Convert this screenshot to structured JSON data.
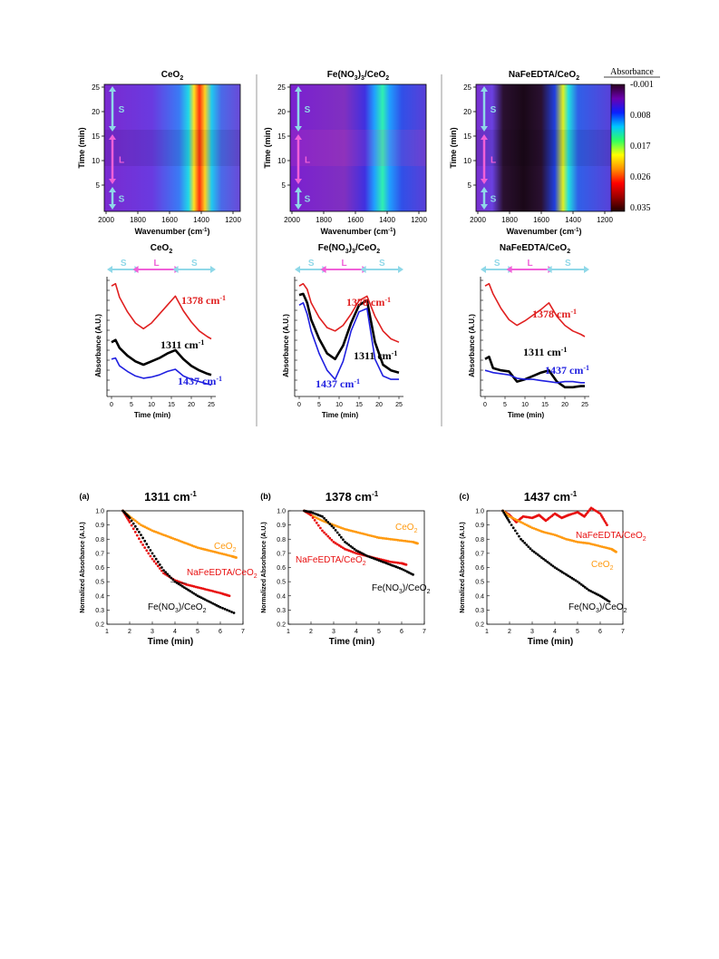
{
  "heatmaps": [
    {
      "title": "CeO",
      "title_sub": "2",
      "title_post": "",
      "variant": "ceo2"
    },
    {
      "title": "Fe(NO",
      "title_sub": "3",
      "title_post": ")3/CeO2",
      "variant": "fe"
    },
    {
      "title": "NaFeEDTA/CeO",
      "title_sub": "2",
      "title_post": "",
      "variant": "na"
    }
  ],
  "heatmap_axes": {
    "xlabel": "Wavenumber (cm",
    "xlabel_sup": "-1",
    "xlabel_end": ")",
    "ylabel": "Time (min)",
    "xticks": [
      "2000",
      "1800",
      "1600",
      "1400",
      "1200"
    ],
    "yticks": [
      "25",
      "20",
      "15",
      "10",
      "5"
    ],
    "phases": [
      "S",
      "L",
      "S"
    ]
  },
  "colorbar": {
    "title": "Absorbance",
    "ticks": [
      "-0.001",
      "0.008",
      "0.017",
      "0.026",
      "0.035"
    ],
    "colors": [
      "#2b0020",
      "#6a00b0",
      "#0a20ff",
      "#00c8ff",
      "#30ff60",
      "#ffff00",
      "#ff9000",
      "#ff0000",
      "#9a0000",
      "#200000"
    ]
  },
  "chart_data": [
    {
      "type": "line",
      "title": "CeO2",
      "xlabel": "Time (min)",
      "ylabel": "Absorbance (A.U.)",
      "xticks": [
        "0",
        "5",
        "10",
        "15",
        "20",
        "25"
      ],
      "phases": [
        "S",
        "L",
        "S"
      ],
      "series": [
        {
          "name": "1378 cm-1",
          "color": "#e02020",
          "x": [
            0,
            1,
            2,
            4,
            6,
            8,
            10,
            12,
            14,
            16,
            18,
            20,
            22,
            24,
            25
          ],
          "y": [
            0.95,
            0.97,
            0.85,
            0.72,
            0.62,
            0.57,
            0.62,
            0.7,
            0.78,
            0.86,
            0.73,
            0.63,
            0.55,
            0.5,
            0.48
          ]
        },
        {
          "name": "1311 cm-1",
          "color": "#000000",
          "x": [
            0,
            1,
            2,
            4,
            6,
            8,
            10,
            12,
            14,
            16,
            18,
            20,
            22,
            24,
            25
          ],
          "y": [
            0.45,
            0.47,
            0.4,
            0.33,
            0.28,
            0.25,
            0.28,
            0.31,
            0.35,
            0.38,
            0.3,
            0.24,
            0.2,
            0.17,
            0.16
          ]
        },
        {
          "name": "1437 cm-1",
          "color": "#2020e0",
          "x": [
            0,
            1,
            2,
            4,
            6,
            8,
            10,
            12,
            14,
            16,
            18,
            20,
            22,
            24,
            25
          ],
          "y": [
            0.3,
            0.31,
            0.24,
            0.19,
            0.15,
            0.13,
            0.14,
            0.16,
            0.19,
            0.21,
            0.15,
            0.12,
            0.1,
            0.08,
            0.07
          ]
        }
      ],
      "labels": [
        "1378 cm",
        "1311 cm",
        "1437 cm"
      ]
    },
    {
      "type": "line",
      "title": "Fe(NO3)3/CeO2",
      "xlabel": "Time (min)",
      "ylabel": "Absorbance (A.U.)",
      "xticks": [
        "0",
        "5",
        "10",
        "15",
        "20",
        "25"
      ],
      "phases": [
        "S",
        "L",
        "S"
      ],
      "series": [
        {
          "name": "1378 cm-1",
          "color": "#e02020",
          "x": [
            0,
            1,
            2,
            3,
            5,
            7,
            9,
            11,
            13,
            15,
            17,
            19,
            21,
            23,
            25
          ],
          "y": [
            0.95,
            0.97,
            0.92,
            0.8,
            0.67,
            0.58,
            0.55,
            0.6,
            0.7,
            0.82,
            0.86,
            0.68,
            0.55,
            0.48,
            0.45
          ]
        },
        {
          "name": "1311 cm-1",
          "color": "#000000",
          "x": [
            0,
            1,
            2,
            3,
            5,
            7,
            9,
            11,
            13,
            15,
            17,
            19,
            21,
            23,
            25
          ],
          "y": [
            0.87,
            0.88,
            0.8,
            0.65,
            0.48,
            0.35,
            0.3,
            0.42,
            0.62,
            0.78,
            0.82,
            0.45,
            0.25,
            0.2,
            0.18
          ]
        },
        {
          "name": "1437 cm-1",
          "color": "#2020e0",
          "x": [
            0,
            1,
            2,
            3,
            5,
            7,
            9,
            11,
            13,
            15,
            17,
            19,
            21,
            23,
            25
          ],
          "y": [
            0.78,
            0.8,
            0.7,
            0.55,
            0.35,
            0.2,
            0.12,
            0.28,
            0.55,
            0.72,
            0.75,
            0.3,
            0.15,
            0.12,
            0.12
          ]
        }
      ],
      "labels": [
        "1378 cm",
        "1311 cm",
        "1437 cm"
      ]
    },
    {
      "type": "line",
      "title": "NaFeEDTA/CeO2",
      "xlabel": "Time (min)",
      "ylabel": "Absorbance (A.U.)",
      "xticks": [
        "0",
        "5",
        "10",
        "15",
        "20",
        "25"
      ],
      "phases": [
        "S",
        "L",
        "S"
      ],
      "series": [
        {
          "name": "1378 cm-1",
          "color": "#e02020",
          "x": [
            0,
            1,
            2,
            4,
            6,
            8,
            10,
            12,
            14,
            16,
            18,
            20,
            22,
            24,
            25
          ],
          "y": [
            0.95,
            0.97,
            0.88,
            0.75,
            0.65,
            0.6,
            0.64,
            0.69,
            0.74,
            0.8,
            0.68,
            0.6,
            0.55,
            0.52,
            0.5
          ]
        },
        {
          "name": "1311 cm-1",
          "color": "#000000",
          "x": [
            0,
            1,
            2,
            4,
            6,
            8,
            10,
            12,
            14,
            16,
            18,
            20,
            22,
            24,
            25
          ],
          "y": [
            0.3,
            0.32,
            0.22,
            0.2,
            0.19,
            0.1,
            0.12,
            0.15,
            0.18,
            0.2,
            0.1,
            0.05,
            0.05,
            0.06,
            0.06
          ]
        },
        {
          "name": "1437 cm-1",
          "color": "#2020e0",
          "x": [
            0,
            1,
            2,
            4,
            6,
            8,
            10,
            12,
            14,
            16,
            18,
            20,
            22,
            24,
            25
          ],
          "y": [
            0.2,
            0.19,
            0.18,
            0.17,
            0.16,
            0.13,
            0.12,
            0.12,
            0.11,
            0.1,
            0.09,
            0.1,
            0.1,
            0.09,
            0.09
          ]
        }
      ],
      "labels": [
        "1378 cm",
        "1311 cm",
        "1437 cm"
      ]
    },
    {
      "type": "scatter",
      "panel": "(a)",
      "title": "1311 cm",
      "xlabel": "Time (min)",
      "ylabel": "Normalized Absorbance (A.U.)",
      "xlim": [
        1,
        7
      ],
      "ylim": [
        0.2,
        1.0
      ],
      "xticks": [
        "1",
        "2",
        "3",
        "4",
        "5",
        "6",
        "7"
      ],
      "yticks": [
        "1.0",
        "0.9",
        "0.8",
        "0.7",
        "0.6",
        "0.5",
        "0.4",
        "0.3",
        "0.2"
      ],
      "series": [
        {
          "name": "CeO2",
          "color": "#ff9a10",
          "x": [
            1.7,
            2.0,
            2.5,
            3.0,
            3.5,
            4.0,
            4.5,
            5.0,
            5.5,
            6.0,
            6.5,
            6.7
          ],
          "y": [
            1.0,
            0.96,
            0.9,
            0.86,
            0.83,
            0.8,
            0.77,
            0.74,
            0.72,
            0.7,
            0.68,
            0.67
          ]
        },
        {
          "name": "NaFeEDTA/CeO2",
          "color": "#e81010",
          "x": [
            1.7,
            2.0,
            2.5,
            3.0,
            3.5,
            4.0,
            4.5,
            5.0,
            5.5,
            6.0,
            6.4
          ],
          "y": [
            1.0,
            0.92,
            0.78,
            0.66,
            0.56,
            0.51,
            0.48,
            0.46,
            0.44,
            0.42,
            0.4
          ]
        },
        {
          "name": "Fe(NO3)3/CeO2",
          "color": "#000000",
          "x": [
            1.7,
            2.0,
            2.5,
            3.0,
            3.5,
            4.0,
            4.5,
            5.0,
            5.5,
            6.0,
            6.6
          ],
          "y": [
            1.0,
            0.95,
            0.83,
            0.7,
            0.58,
            0.5,
            0.45,
            0.4,
            0.36,
            0.32,
            0.28
          ]
        }
      ],
      "labels": [
        "CeO",
        "NaFeEDTA/CeO",
        "Fe(NO",
        ")/CeO"
      ]
    },
    {
      "type": "scatter",
      "panel": "(b)",
      "title": "1378 cm",
      "xlabel": "Time (min)",
      "ylabel": "Normalized Absorbance (A.U.)",
      "xlim": [
        1,
        7
      ],
      "ylim": [
        0.2,
        1.0
      ],
      "xticks": [
        "1",
        "2",
        "3",
        "4",
        "5",
        "6",
        "7"
      ],
      "yticks": [
        "1.0",
        "0.9",
        "0.8",
        "0.7",
        "0.6",
        "0.5",
        "0.4",
        "0.3",
        "0.2"
      ],
      "series": [
        {
          "name": "CeO2",
          "color": "#ff9a10",
          "x": [
            1.7,
            2.0,
            2.5,
            3.0,
            3.5,
            4.0,
            4.5,
            5.0,
            5.5,
            6.0,
            6.5,
            6.7
          ],
          "y": [
            1.0,
            0.97,
            0.93,
            0.9,
            0.87,
            0.85,
            0.83,
            0.81,
            0.8,
            0.79,
            0.78,
            0.77
          ]
        },
        {
          "name": "NaFeEDTA/CeO2",
          "color": "#e81010",
          "x": [
            1.7,
            2.0,
            2.5,
            3.0,
            3.5,
            4.0,
            4.5,
            5.0,
            5.5,
            6.0,
            6.2
          ],
          "y": [
            1.0,
            0.97,
            0.86,
            0.78,
            0.73,
            0.7,
            0.68,
            0.66,
            0.64,
            0.63,
            0.62
          ]
        },
        {
          "name": "Fe(NO3)3/CeO2",
          "color": "#000000",
          "x": [
            1.7,
            2.0,
            2.5,
            3.0,
            3.5,
            4.0,
            4.5,
            5.0,
            5.5,
            6.0,
            6.5
          ],
          "y": [
            1.0,
            0.99,
            0.96,
            0.88,
            0.78,
            0.72,
            0.68,
            0.65,
            0.62,
            0.59,
            0.55
          ]
        }
      ],
      "labels": [
        "CeO",
        "NaFeEDTA/CeO",
        "Fe(NO",
        ")/CeO"
      ]
    },
    {
      "type": "scatter",
      "panel": "(c)",
      "title": "1437 cm",
      "xlabel": "Time (min)",
      "ylabel": "Normalized Absorbance (A.U.)",
      "xlim": [
        1,
        7
      ],
      "ylim": [
        0.2,
        1.0
      ],
      "xticks": [
        "1",
        "2",
        "3",
        "4",
        "5",
        "6",
        "7"
      ],
      "yticks": [
        "1.0",
        "0.9",
        "0.8",
        "0.7",
        "0.6",
        "0.5",
        "0.4",
        "0.3",
        "0.2"
      ],
      "series": [
        {
          "name": "NaFeEDTA/CeO2",
          "color": "#e81010",
          "x": [
            1.7,
            2.0,
            2.3,
            2.6,
            3.0,
            3.3,
            3.6,
            4.0,
            4.3,
            4.6,
            5.0,
            5.3,
            5.6,
            6.0,
            6.3
          ],
          "y": [
            1.0,
            0.97,
            0.92,
            0.96,
            0.95,
            0.97,
            0.93,
            0.98,
            0.95,
            0.97,
            0.99,
            0.96,
            1.02,
            0.98,
            0.9
          ]
        },
        {
          "name": "CeO2",
          "color": "#ff9a10",
          "x": [
            1.7,
            2.0,
            2.5,
            3.0,
            3.5,
            4.0,
            4.5,
            5.0,
            5.5,
            6.0,
            6.5,
            6.7
          ],
          "y": [
            1.0,
            0.96,
            0.92,
            0.88,
            0.85,
            0.83,
            0.8,
            0.78,
            0.77,
            0.75,
            0.73,
            0.71
          ]
        },
        {
          "name": "Fe(NO3)3/CeO2",
          "color": "#000000",
          "x": [
            1.7,
            2.0,
            2.5,
            3.0,
            3.5,
            4.0,
            4.5,
            5.0,
            5.5,
            6.0,
            6.4
          ],
          "y": [
            1.0,
            0.92,
            0.8,
            0.72,
            0.66,
            0.6,
            0.55,
            0.5,
            0.44,
            0.4,
            0.36
          ]
        }
      ],
      "labels": [
        "NaFeEDTA/CeO",
        "CeO",
        "Fe(NO",
        ")/CeO"
      ]
    }
  ]
}
